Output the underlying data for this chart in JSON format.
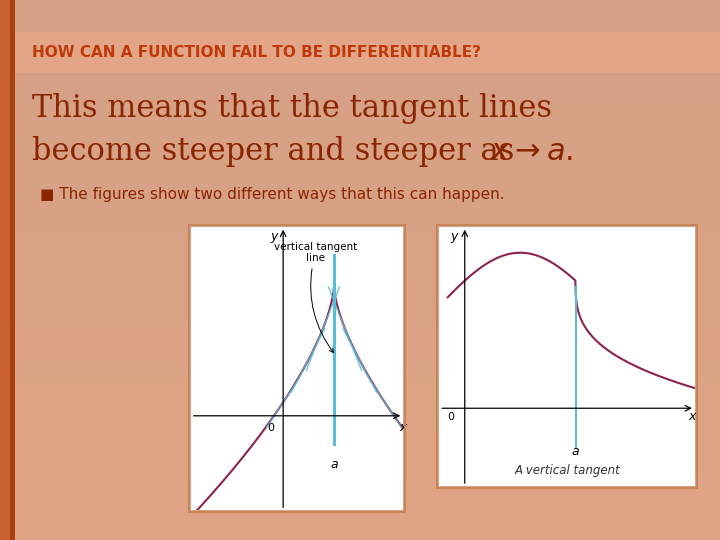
{
  "title": "HOW CAN A FUNCTION FAIL TO BE DIFFERENTIABLE?",
  "title_color": "#C0390A",
  "title_bg_color": "#EDBAAB",
  "main_text_line1": "This means that the tangent lines",
  "main_text_line2": "become steeper and steeper as ",
  "bullet_text": "The figures show two different ways that this can happen.",
  "bg_color": "#F0C8B0",
  "fig1_label": "vertical tangent\nline",
  "fig2_label": "A vertical tangent",
  "curve_color": "#8B2252",
  "tangent_color": "#5BBCD6",
  "box_border_color": "#C8855A",
  "text_color": "#8B2500"
}
